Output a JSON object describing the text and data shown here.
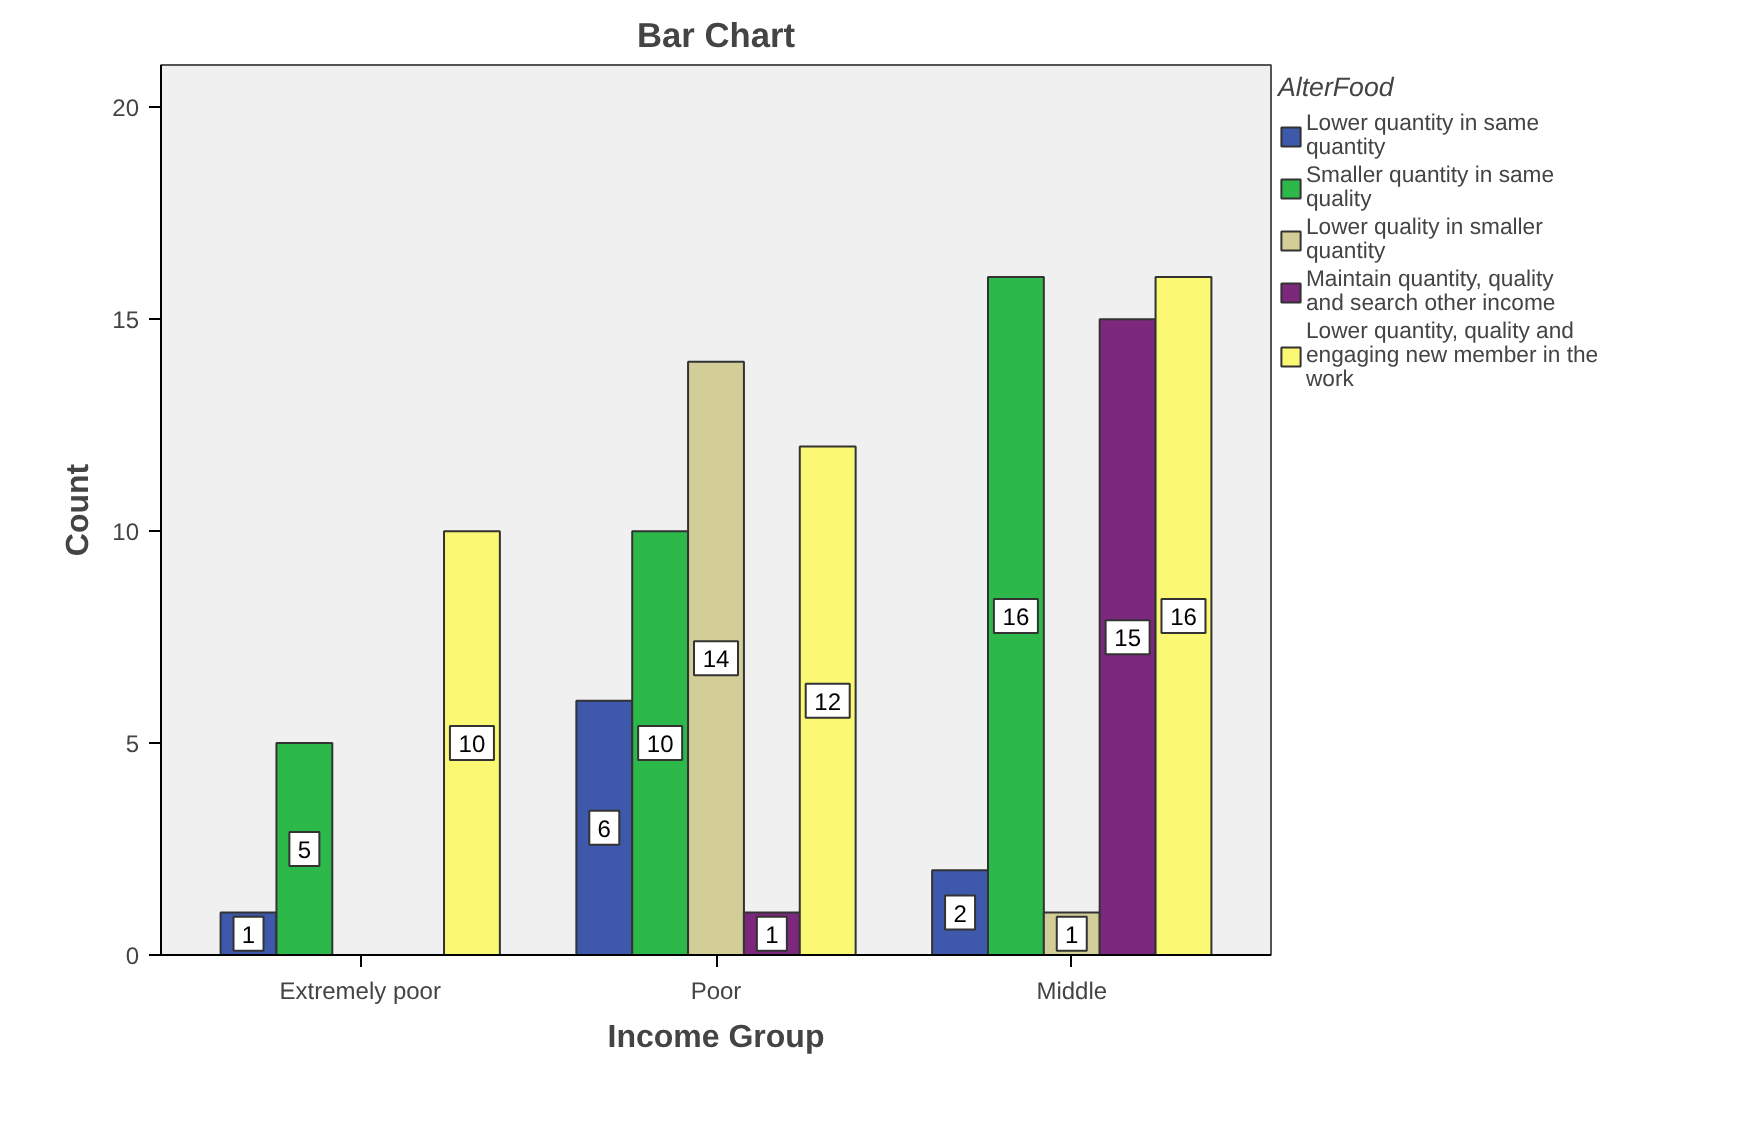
{
  "chart_data": {
    "type": "bar",
    "title": "Bar Chart",
    "xlabel": "Income Group",
    "ylabel": "Count",
    "legend_title": "AlterFood",
    "categories": [
      "Extremely poor",
      "Poor",
      "Middle"
    ],
    "series": [
      {
        "name": "Lower quantity in same quantity",
        "color": "#3e58ac",
        "values": [
          1,
          6,
          2
        ]
      },
      {
        "name": "Smaller quantity in same quality",
        "color": "#2db84a",
        "values": [
          5,
          10,
          16
        ]
      },
      {
        "name": "Lower quality in smaller quantity",
        "color": "#d3ce97",
        "values": [
          null,
          14,
          1
        ]
      },
      {
        "name": "Maintain quantity, quality and search other income",
        "color": "#7b287d",
        "values": [
          null,
          1,
          15
        ]
      },
      {
        "name": "Lower quantity, quality and engaging new member in the work",
        "color": "#fbf873",
        "values": [
          10,
          12,
          16
        ]
      }
    ],
    "ylim": [
      0,
      21
    ],
    "yticks": [
      0,
      5,
      10,
      15,
      20
    ],
    "grid": false,
    "legend": "right",
    "data_labels": true
  }
}
